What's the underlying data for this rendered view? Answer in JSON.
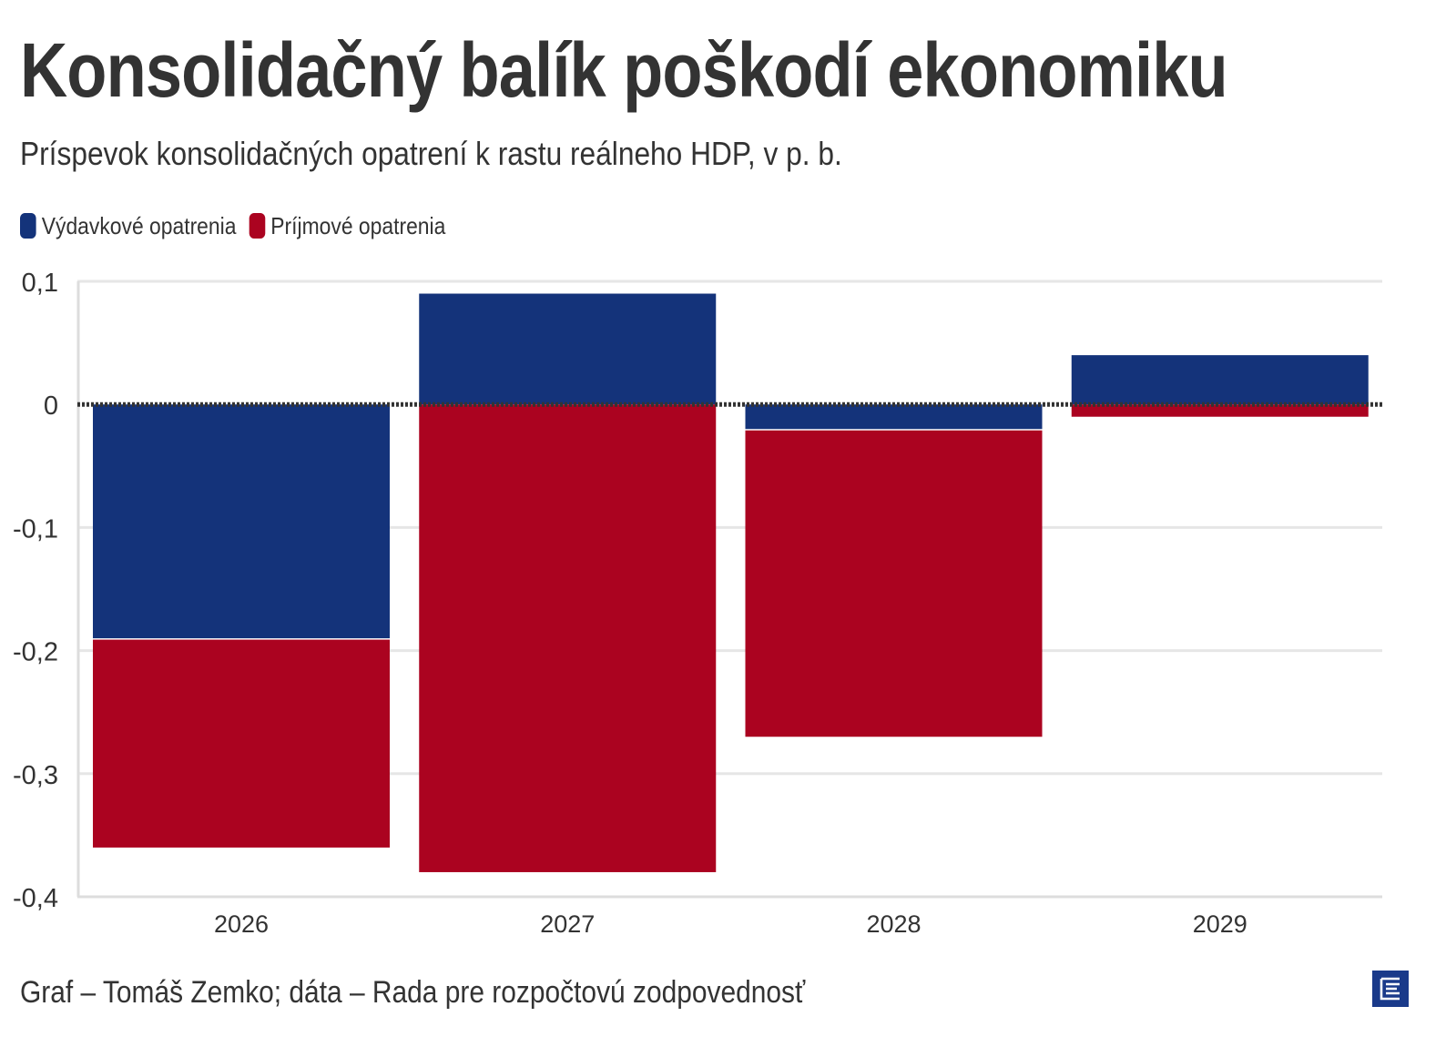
{
  "title": "Konsolidačný balík poškodí ekonomiku",
  "subtitle": "Príspevok konsolidačných opatrení k rastu reálneho HDP, v p. b.",
  "footer": "Graf – Tomáš Zemko; dáta – Rada pre rozpočtovú zodpovednosť",
  "logo_icon": "publisher-logo-icon",
  "colors": {
    "expenditure": "#14337a",
    "revenue": "#ab0320",
    "grid": "#e6e6e6",
    "axis": "#dddddd",
    "zero_line": "#333333",
    "text": "#333333"
  },
  "chart_data": {
    "type": "bar",
    "stacked": true,
    "categories": [
      "2026",
      "2027",
      "2028",
      "2029"
    ],
    "series": [
      {
        "name": "Výdavkové opatrenia",
        "values": [
          -0.19,
          0.09,
          -0.02,
          0.04
        ]
      },
      {
        "name": "Príjmové opatrenia",
        "values": [
          -0.17,
          -0.38,
          -0.25,
          -0.01
        ]
      }
    ],
    "yticks": [
      "0,1",
      "0",
      "-0,1",
      "-0,2",
      "-0,3",
      "-0,4"
    ],
    "ytick_values": [
      0.1,
      0,
      -0.1,
      -0.2,
      -0.3,
      -0.4
    ],
    "ylim": [
      -0.4,
      0.1
    ],
    "legend_position": "top-left",
    "grid": true,
    "zero_line": "dotted",
    "xlabel": "",
    "ylabel": ""
  }
}
